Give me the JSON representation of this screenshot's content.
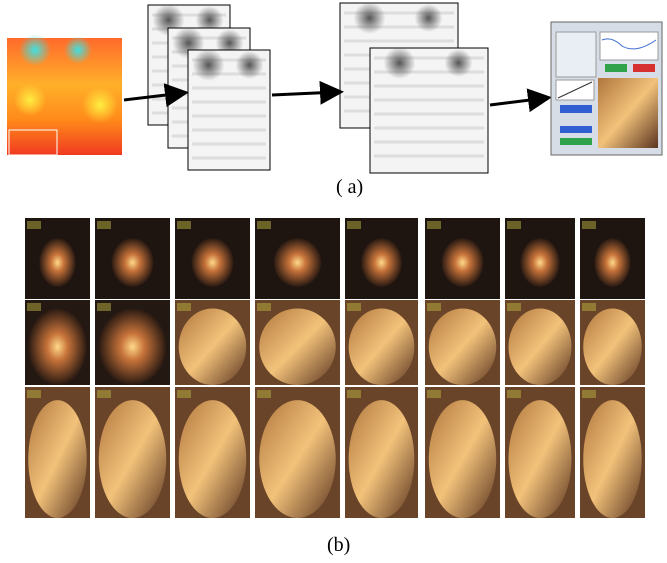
{
  "captions": {
    "a": "( a)",
    "b": "(b)"
  }
}
